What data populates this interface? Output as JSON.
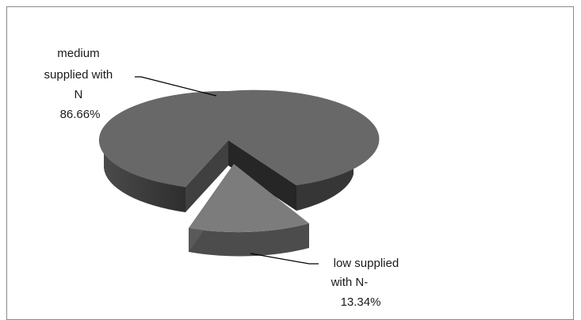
{
  "chart_data": {
    "type": "pie",
    "title": "",
    "slices": [
      {
        "label_lines": [
          "medium",
          "supplied with",
          "N",
          "86.66%"
        ],
        "value": 86.66,
        "color": "#686868"
      },
      {
        "label_lines": [
          "low supplied",
          "with N-",
          "13.34%"
        ],
        "value": 13.34,
        "color": "#7c7c7c"
      }
    ],
    "style": "3d-exploded",
    "legend": "none"
  }
}
